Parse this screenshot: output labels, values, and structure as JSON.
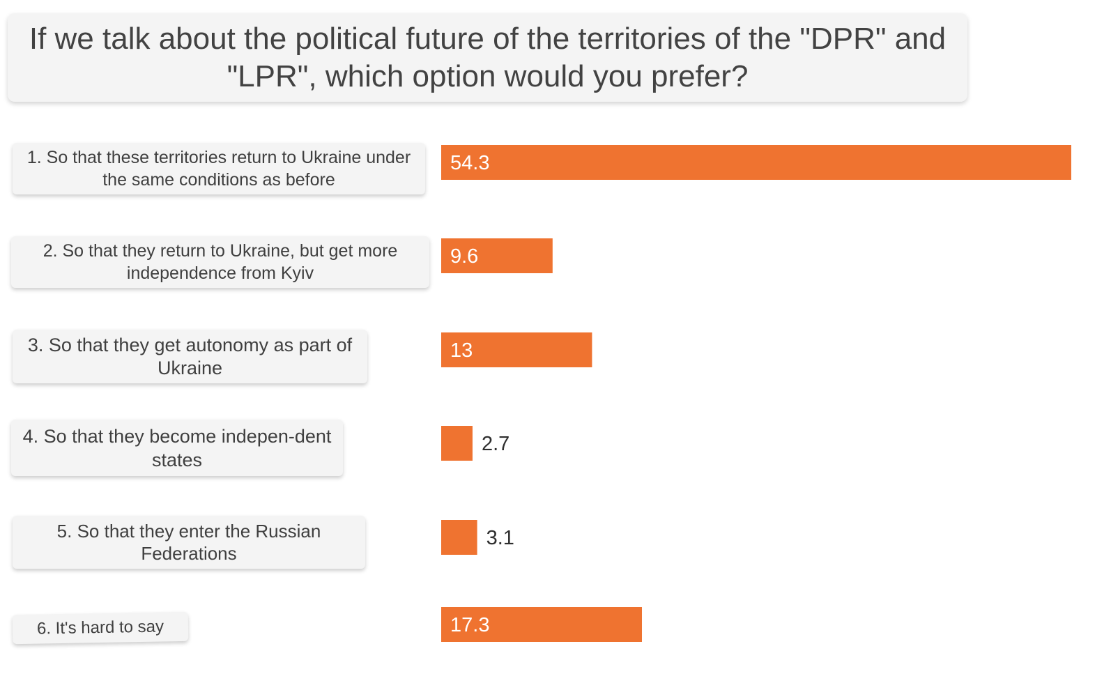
{
  "chart_data": {
    "type": "bar",
    "orientation": "horizontal",
    "title": "If we talk about the political future of the territories of the \"DPR\" and \"LPR\", which option would you prefer?",
    "categories": [
      "1. So that these territories return to Ukraine under the same conditions as before",
      "2. So that they return to Ukraine, but get more independence from Kyiv",
      "3. So that they get autonomy as part of Ukraine",
      "4. So that they become indepen-dent states",
      "5. So that they enter the Russian Federations",
      "6. It's hard to say"
    ],
    "values": [
      54.3,
      9.6,
      13,
      2.7,
      3.1,
      17.3
    ],
    "value_labels": [
      "54.3",
      "9.6",
      "13",
      "2.7",
      "3.1",
      "17.3"
    ],
    "xlabel": "",
    "ylabel": "",
    "xlim": [
      0,
      54.3
    ],
    "bar_color": "#ef7330",
    "legend": "none",
    "grid": false
  }
}
